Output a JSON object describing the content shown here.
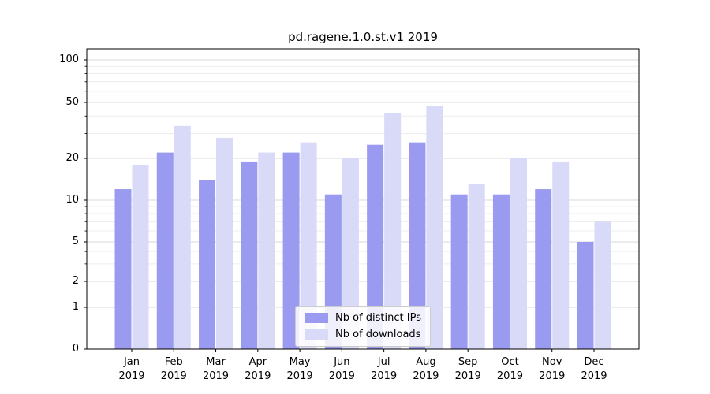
{
  "chart_data": {
    "type": "bar",
    "title": "pd.ragene.1.0.st.v1 2019",
    "yscale": "symlog",
    "grid": true,
    "legend_position": "lower center",
    "ylim": [
      0,
      120
    ],
    "yticks": [
      0,
      1,
      2,
      5,
      10,
      20,
      50,
      100
    ],
    "minor_yticks": [
      3,
      4,
      6,
      7,
      8,
      9,
      30,
      40,
      60,
      70,
      80,
      90
    ],
    "x_categories": [
      {
        "month": "Jan",
        "year": "2019"
      },
      {
        "month": "Feb",
        "year": "2019"
      },
      {
        "month": "Mar",
        "year": "2019"
      },
      {
        "month": "Apr",
        "year": "2019"
      },
      {
        "month": "May",
        "year": "2019"
      },
      {
        "month": "Jun",
        "year": "2019"
      },
      {
        "month": "Jul",
        "year": "2019"
      },
      {
        "month": "Aug",
        "year": "2019"
      },
      {
        "month": "Sep",
        "year": "2019"
      },
      {
        "month": "Oct",
        "year": "2019"
      },
      {
        "month": "Nov",
        "year": "2019"
      },
      {
        "month": "Dec",
        "year": "2019"
      }
    ],
    "series": [
      {
        "name": "Nb of distinct IPs",
        "color": "#9a9af0",
        "values": [
          12,
          22,
          14,
          19,
          22,
          11,
          25,
          26,
          11,
          11,
          12,
          5
        ]
      },
      {
        "name": "Nb of downloads",
        "color": "#d9d9f8",
        "values": [
          18,
          34,
          28,
          22,
          26,
          20,
          42,
          47,
          13,
          20,
          19,
          7
        ]
      }
    ]
  }
}
